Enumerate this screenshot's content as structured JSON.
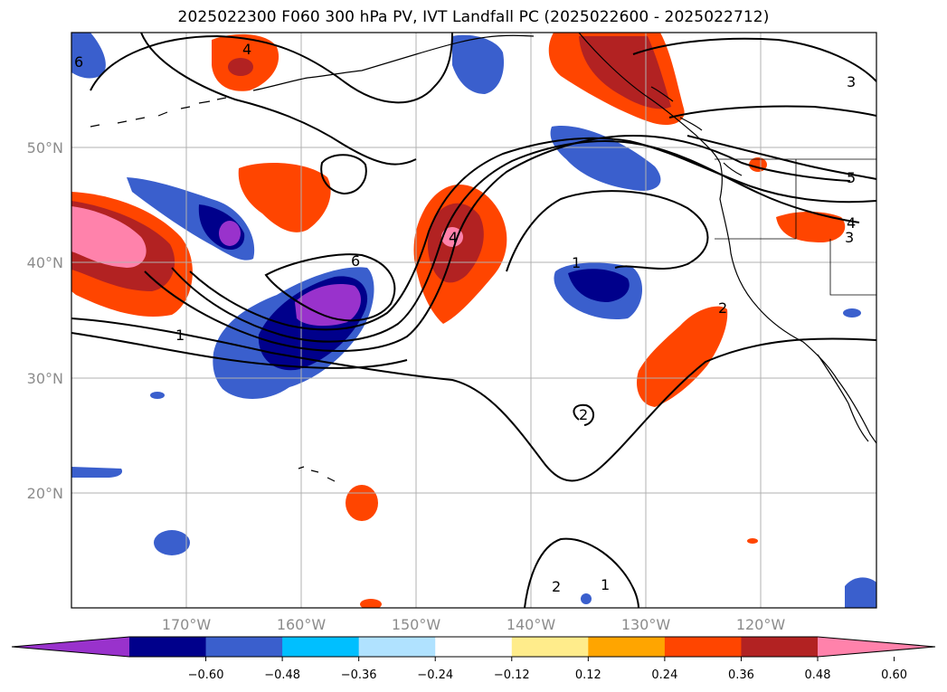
{
  "title": "2025022300 F060 300 hPa PV, IVT Landfall PC (2025022600 - 2025022712)",
  "map": {
    "lat_ticks": [
      "50°N",
      "40°N",
      "30°N",
      "20°N"
    ],
    "lon_ticks": [
      "170°W",
      "160°W",
      "150°W",
      "140°W",
      "130°W",
      "120°W"
    ],
    "contour_labels": [
      "4",
      "6",
      "4",
      "1",
      "3",
      "5",
      "4",
      "3",
      "2",
      "1",
      "2",
      "2",
      "1",
      "6"
    ]
  },
  "colorbar": {
    "ticks": [
      "−0.60",
      "−0.48",
      "−0.36",
      "−0.24",
      "−0.12",
      "0.12",
      "0.24",
      "0.36",
      "0.48",
      "0.60"
    ],
    "colors": [
      "#9932cc",
      "#00008b",
      "#3a5fcd",
      "#00bfff",
      "#b0e2ff",
      "#ffffff",
      "#ffec8b",
      "#ffa500",
      "#ff4500",
      "#b22222",
      "#ff82ab"
    ]
  },
  "colors": {
    "gridline": "#b0b0b0",
    "contour": "#000000",
    "coastline": "#000000",
    "tick_label": "#8c8c8c"
  }
}
